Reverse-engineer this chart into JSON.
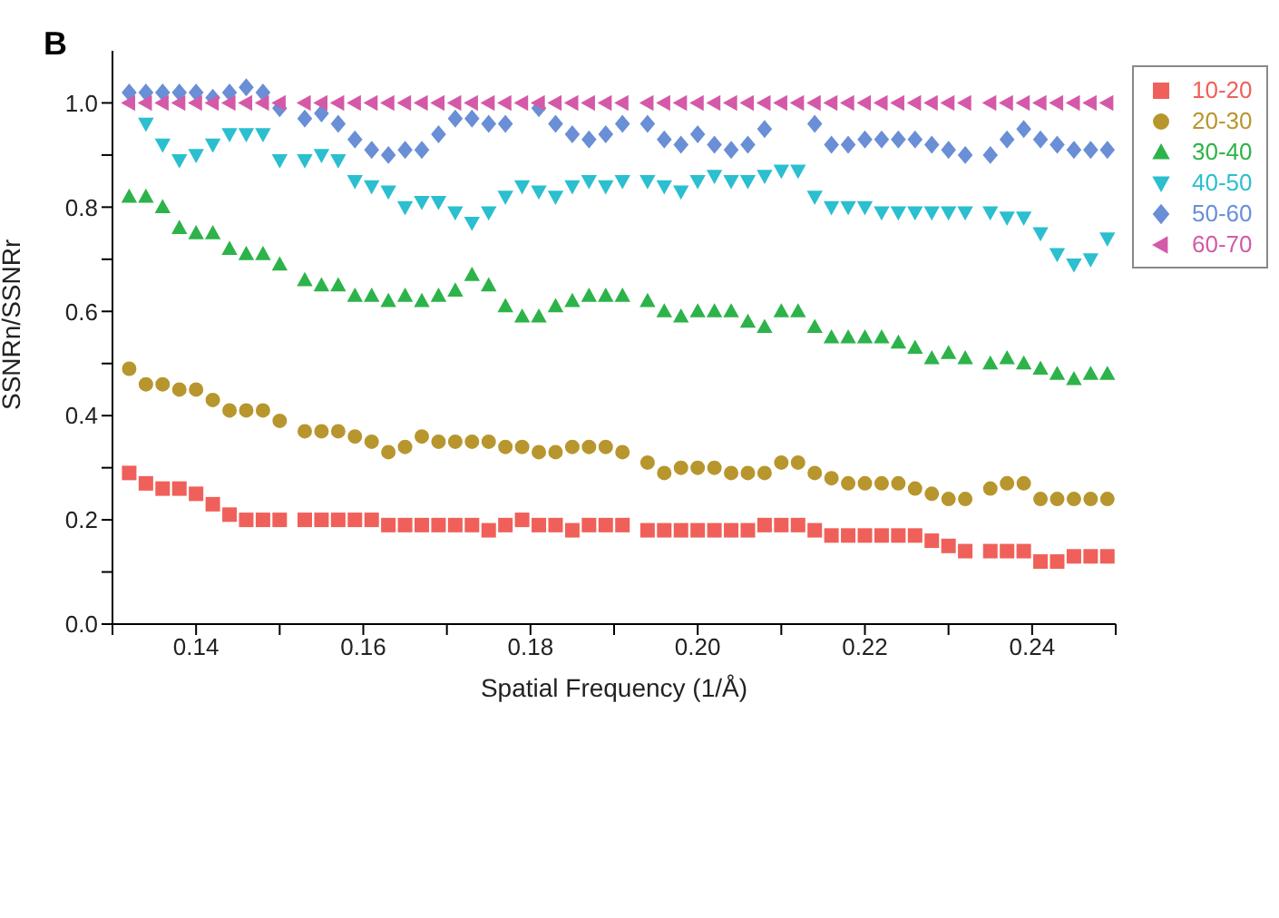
{
  "chart_data": {
    "type": "scatter",
    "title": "B",
    "xlabel": "Spatial Frequency (1/Å)",
    "ylabel": "SSNRn/SSNRr",
    "x": [
      0.132,
      0.134,
      0.136,
      0.138,
      0.14,
      0.142,
      0.144,
      0.146,
      0.148,
      0.15,
      0.153,
      0.155,
      0.157,
      0.159,
      0.161,
      0.163,
      0.165,
      0.167,
      0.169,
      0.171,
      0.173,
      0.175,
      0.177,
      0.179,
      0.181,
      0.183,
      0.185,
      0.187,
      0.189,
      0.191,
      0.194,
      0.196,
      0.198,
      0.2,
      0.202,
      0.204,
      0.206,
      0.208,
      0.21,
      0.212,
      0.214,
      0.216,
      0.218,
      0.22,
      0.222,
      0.224,
      0.226,
      0.228,
      0.23,
      0.232,
      0.235,
      0.237,
      0.239,
      0.241,
      0.243,
      0.245,
      0.247,
      0.249
    ],
    "series": [
      {
        "name": "10-20",
        "color": "#f0605a",
        "marker": "square",
        "values": [
          0.29,
          0.27,
          0.26,
          0.26,
          0.25,
          0.23,
          0.21,
          0.2,
          0.2,
          0.2,
          0.2,
          0.2,
          0.2,
          0.2,
          0.2,
          0.19,
          0.19,
          0.19,
          0.19,
          0.19,
          0.19,
          0.18,
          0.19,
          0.2,
          0.19,
          0.19,
          0.18,
          0.19,
          0.19,
          0.19,
          0.18,
          0.18,
          0.18,
          0.18,
          0.18,
          0.18,
          0.18,
          0.19,
          0.19,
          0.19,
          0.18,
          0.17,
          0.17,
          0.17,
          0.17,
          0.17,
          0.17,
          0.16,
          0.15,
          0.14,
          0.14,
          0.14,
          0.14,
          0.12,
          0.12,
          0.13,
          0.13,
          0.13
        ]
      },
      {
        "name": "20-30",
        "color": "#b8962e",
        "marker": "circle",
        "values": [
          0.49,
          0.46,
          0.46,
          0.45,
          0.45,
          0.43,
          0.41,
          0.41,
          0.41,
          0.39,
          0.37,
          0.37,
          0.37,
          0.36,
          0.35,
          0.33,
          0.34,
          0.36,
          0.35,
          0.35,
          0.35,
          0.35,
          0.34,
          0.34,
          0.33,
          0.33,
          0.34,
          0.34,
          0.34,
          0.33,
          0.31,
          0.29,
          0.3,
          0.3,
          0.3,
          0.29,
          0.29,
          0.29,
          0.31,
          0.31,
          0.29,
          0.28,
          0.27,
          0.27,
          0.27,
          0.27,
          0.26,
          0.25,
          0.24,
          0.24,
          0.26,
          0.27,
          0.27,
          0.24,
          0.24,
          0.24,
          0.24,
          0.24
        ]
      },
      {
        "name": "30-40",
        "color": "#2db34a",
        "marker": "triangle",
        "values": [
          0.82,
          0.82,
          0.8,
          0.76,
          0.75,
          0.75,
          0.72,
          0.71,
          0.71,
          0.69,
          0.66,
          0.65,
          0.65,
          0.63,
          0.63,
          0.62,
          0.63,
          0.62,
          0.63,
          0.64,
          0.67,
          0.65,
          0.61,
          0.59,
          0.59,
          0.61,
          0.62,
          0.63,
          0.63,
          0.63,
          0.62,
          0.6,
          0.59,
          0.6,
          0.6,
          0.6,
          0.58,
          0.57,
          0.6,
          0.6,
          0.57,
          0.55,
          0.55,
          0.55,
          0.55,
          0.54,
          0.53,
          0.51,
          0.52,
          0.51,
          0.5,
          0.51,
          0.5,
          0.49,
          0.48,
          0.47,
          0.48,
          0.48
        ]
      },
      {
        "name": "40-50",
        "color": "#2bbfcf",
        "marker": "triangle-down",
        "values": [
          null,
          0.96,
          0.92,
          0.89,
          0.9,
          0.92,
          0.94,
          0.94,
          0.94,
          0.89,
          0.89,
          0.9,
          0.89,
          0.85,
          0.84,
          0.83,
          0.8,
          0.81,
          0.81,
          0.79,
          0.77,
          0.79,
          0.82,
          0.84,
          0.83,
          0.82,
          0.84,
          0.85,
          0.84,
          0.85,
          0.85,
          0.84,
          0.83,
          0.85,
          0.86,
          0.85,
          0.85,
          0.86,
          0.87,
          0.87,
          0.82,
          0.8,
          0.8,
          0.8,
          0.79,
          0.79,
          0.79,
          0.79,
          0.79,
          0.79,
          0.79,
          0.78,
          0.78,
          0.75,
          0.71,
          0.69,
          0.7,
          0.74
        ]
      },
      {
        "name": "50-60",
        "color": "#6a8fd6",
        "marker": "diamond",
        "values": [
          1.02,
          1.02,
          1.02,
          1.02,
          1.02,
          1.01,
          1.02,
          1.03,
          1.02,
          0.99,
          0.97,
          0.98,
          0.96,
          0.93,
          0.91,
          0.9,
          0.91,
          0.91,
          0.94,
          0.97,
          0.97,
          0.96,
          0.96,
          null,
          0.99,
          0.96,
          0.94,
          0.93,
          0.94,
          0.96,
          0.96,
          0.93,
          0.92,
          0.94,
          0.92,
          0.91,
          0.92,
          0.95,
          null,
          null,
          0.96,
          0.92,
          0.92,
          0.93,
          0.93,
          0.93,
          0.93,
          0.92,
          0.91,
          0.9,
          0.9,
          0.93,
          0.95,
          0.93,
          0.92,
          0.91,
          0.91,
          0.91
        ]
      },
      {
        "name": "60-70",
        "color": "#d45aa8",
        "marker": "triangle-left",
        "values": [
          1,
          1,
          1,
          1,
          1,
          1,
          1,
          1,
          1,
          1,
          1,
          1,
          1,
          1,
          1,
          1,
          1,
          1,
          1,
          1,
          1,
          1,
          1,
          1,
          1,
          1,
          1,
          1,
          1,
          1,
          1,
          1,
          1,
          1,
          1,
          1,
          1,
          1,
          1,
          1,
          1,
          1,
          1,
          1,
          1,
          1,
          1,
          1,
          1,
          1,
          1,
          1,
          1,
          1,
          1,
          1,
          1,
          1
        ]
      }
    ],
    "xlim": [
      0.13,
      0.25
    ],
    "xticks": [
      {
        "value": 0.13,
        "label": null
      },
      0.14,
      {
        "value": 0.15,
        "label": null
      },
      0.16,
      {
        "value": 0.17,
        "label": null
      },
      0.18,
      {
        "value": 0.19,
        "label": null
      },
      {
        "value": 0.2,
        "label": "0.20"
      },
      {
        "value": 0.21,
        "label": null
      },
      0.22,
      {
        "value": 0.23,
        "label": null
      },
      0.24,
      {
        "value": 0.25,
        "label": null
      }
    ],
    "ylim": [
      0,
      1.1
    ],
    "yticks": [
      {
        "value": 0,
        "label": "0.0"
      },
      {
        "value": 0.1,
        "label": null
      },
      0.2,
      {
        "value": 0.3,
        "label": null
      },
      0.4,
      {
        "value": 0.5,
        "label": null
      },
      0.6,
      {
        "value": 0.7,
        "label": null
      },
      0.8,
      {
        "value": 0.9,
        "label": null
      },
      {
        "value": 1,
        "label": "1.0"
      }
    ],
    "grid": false,
    "legend": "top right"
  }
}
